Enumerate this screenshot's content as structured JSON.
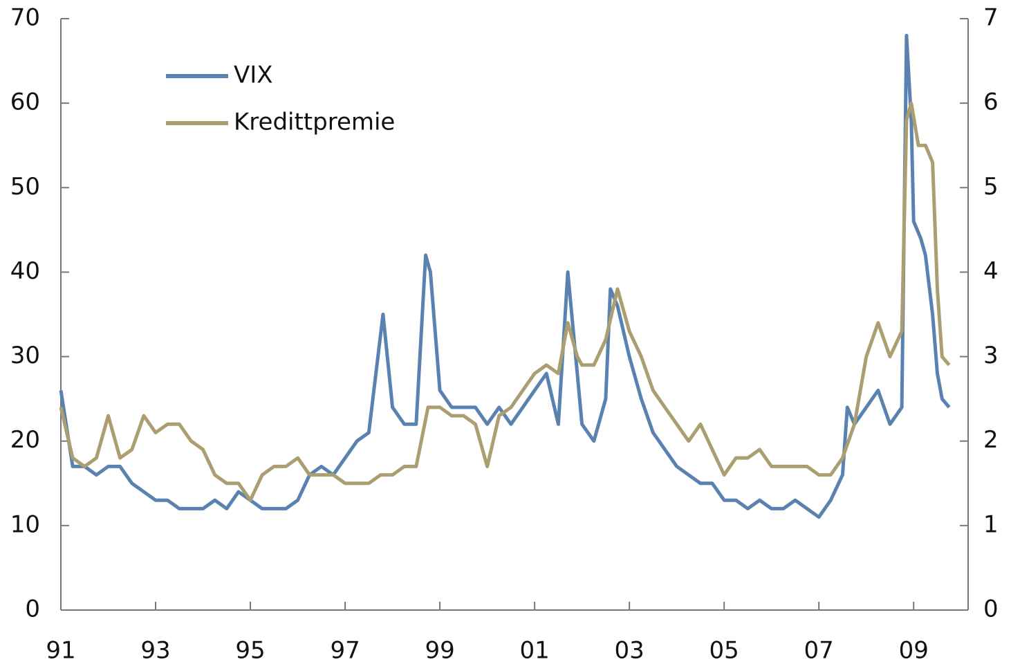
{
  "chart_data": {
    "type": "line",
    "xlim": [
      1991,
      2010.15
    ],
    "xticks": [
      {
        "value": 1991,
        "label": "91"
      },
      {
        "value": 1993,
        "label": "93"
      },
      {
        "value": 1995,
        "label": "95"
      },
      {
        "value": 1997,
        "label": "97"
      },
      {
        "value": 1999,
        "label": "99"
      },
      {
        "value": 2001,
        "label": "01"
      },
      {
        "value": 2003,
        "label": "03"
      },
      {
        "value": 2005,
        "label": "05"
      },
      {
        "value": 2007,
        "label": "07"
      },
      {
        "value": 2009,
        "label": "09"
      }
    ],
    "ylim": [
      0,
      70
    ],
    "yticks": [
      0,
      10,
      20,
      30,
      40,
      50,
      60,
      70
    ],
    "y2lim": [
      0,
      7
    ],
    "y2ticks": [
      0,
      1,
      2,
      3,
      4,
      5,
      6,
      7
    ],
    "series": [
      {
        "name": "VIX",
        "color": "#5a82b0",
        "axis": "y",
        "x": [
          1991,
          1991.25,
          1991.5,
          1991.75,
          1992,
          1992.25,
          1992.5,
          1992.75,
          1993,
          1993.25,
          1993.5,
          1993.75,
          1994,
          1994.25,
          1994.5,
          1994.75,
          1995,
          1995.25,
          1995.5,
          1995.75,
          1996,
          1996.25,
          1996.5,
          1996.75,
          1997,
          1997.25,
          1997.5,
          1997.8,
          1998,
          1998.25,
          1998.5,
          1998.7,
          1998.8,
          1999,
          1999.25,
          1999.5,
          1999.75,
          2000,
          2000.25,
          2000.5,
          2000.75,
          2001,
          2001.25,
          2001.5,
          2001.7,
          2001.9,
          2002,
          2002.25,
          2002.5,
          2002.6,
          2002.75,
          2003,
          2003.25,
          2003.5,
          2003.75,
          2004,
          2004.25,
          2004.5,
          2004.75,
          2005,
          2005.25,
          2005.5,
          2005.75,
          2006,
          2006.25,
          2006.5,
          2006.75,
          2007,
          2007.25,
          2007.5,
          2007.6,
          2007.75,
          2008,
          2008.25,
          2008.5,
          2008.75,
          2008.85,
          2008.95,
          2009,
          2009.15,
          2009.25,
          2009.4,
          2009.5,
          2009.6,
          2009.75
        ],
        "values": [
          26,
          17,
          17,
          16,
          17,
          17,
          15,
          14,
          13,
          13,
          12,
          12,
          12,
          13,
          12,
          14,
          13,
          12,
          12,
          12,
          13,
          16,
          17,
          16,
          18,
          20,
          21,
          35,
          24,
          22,
          22,
          42,
          40,
          26,
          24,
          24,
          24,
          22,
          24,
          22,
          24,
          26,
          28,
          22,
          40,
          28,
          22,
          20,
          25,
          38,
          36,
          30,
          25,
          21,
          19,
          17,
          16,
          15,
          15,
          13,
          13,
          12,
          13,
          12,
          12,
          13,
          12,
          11,
          13,
          16,
          24,
          22,
          24,
          26,
          22,
          24,
          68,
          58,
          46,
          44,
          42,
          35,
          28,
          25,
          24
        ]
      },
      {
        "name": "Kredittpremie",
        "color": "#ab9f72",
        "axis": "y2",
        "x": [
          1991,
          1991.25,
          1991.5,
          1991.75,
          1992,
          1992.25,
          1992.5,
          1992.75,
          1993,
          1993.25,
          1993.5,
          1993.75,
          1994,
          1994.25,
          1994.5,
          1994.75,
          1995,
          1995.25,
          1995.5,
          1995.75,
          1996,
          1996.25,
          1996.5,
          1996.75,
          1997,
          1997.25,
          1997.5,
          1997.75,
          1998,
          1998.25,
          1998.5,
          1998.75,
          1999,
          1999.25,
          1999.5,
          1999.75,
          2000,
          2000.25,
          2000.5,
          2000.75,
          2001,
          2001.25,
          2001.5,
          2001.7,
          2001.9,
          2002,
          2002.25,
          2002.5,
          2002.75,
          2003,
          2003.25,
          2003.5,
          2003.75,
          2004,
          2004.25,
          2004.5,
          2004.75,
          2005,
          2005.25,
          2005.5,
          2005.75,
          2006,
          2006.25,
          2006.5,
          2006.75,
          2007,
          2007.25,
          2007.5,
          2007.75,
          2008,
          2008.25,
          2008.5,
          2008.75,
          2008.85,
          2008.95,
          2009.1,
          2009.25,
          2009.4,
          2009.5,
          2009.6,
          2009.75
        ],
        "values": [
          2.4,
          1.8,
          1.7,
          1.8,
          2.3,
          1.8,
          1.9,
          2.3,
          2.1,
          2.2,
          2.2,
          2.0,
          1.9,
          1.6,
          1.5,
          1.5,
          1.3,
          1.6,
          1.7,
          1.7,
          1.8,
          1.6,
          1.6,
          1.6,
          1.5,
          1.5,
          1.5,
          1.6,
          1.6,
          1.7,
          1.7,
          2.4,
          2.4,
          2.3,
          2.3,
          2.2,
          1.7,
          2.3,
          2.4,
          2.6,
          2.8,
          2.9,
          2.8,
          3.4,
          3.0,
          2.9,
          2.9,
          3.2,
          3.8,
          3.3,
          3.0,
          2.6,
          2.4,
          2.2,
          2.0,
          2.2,
          1.9,
          1.6,
          1.8,
          1.8,
          1.9,
          1.7,
          1.7,
          1.7,
          1.7,
          1.6,
          1.6,
          1.8,
          2.2,
          3.0,
          3.4,
          3.0,
          3.3,
          5.8,
          6.0,
          5.5,
          5.5,
          5.3,
          3.8,
          3.0,
          2.9
        ]
      }
    ]
  }
}
